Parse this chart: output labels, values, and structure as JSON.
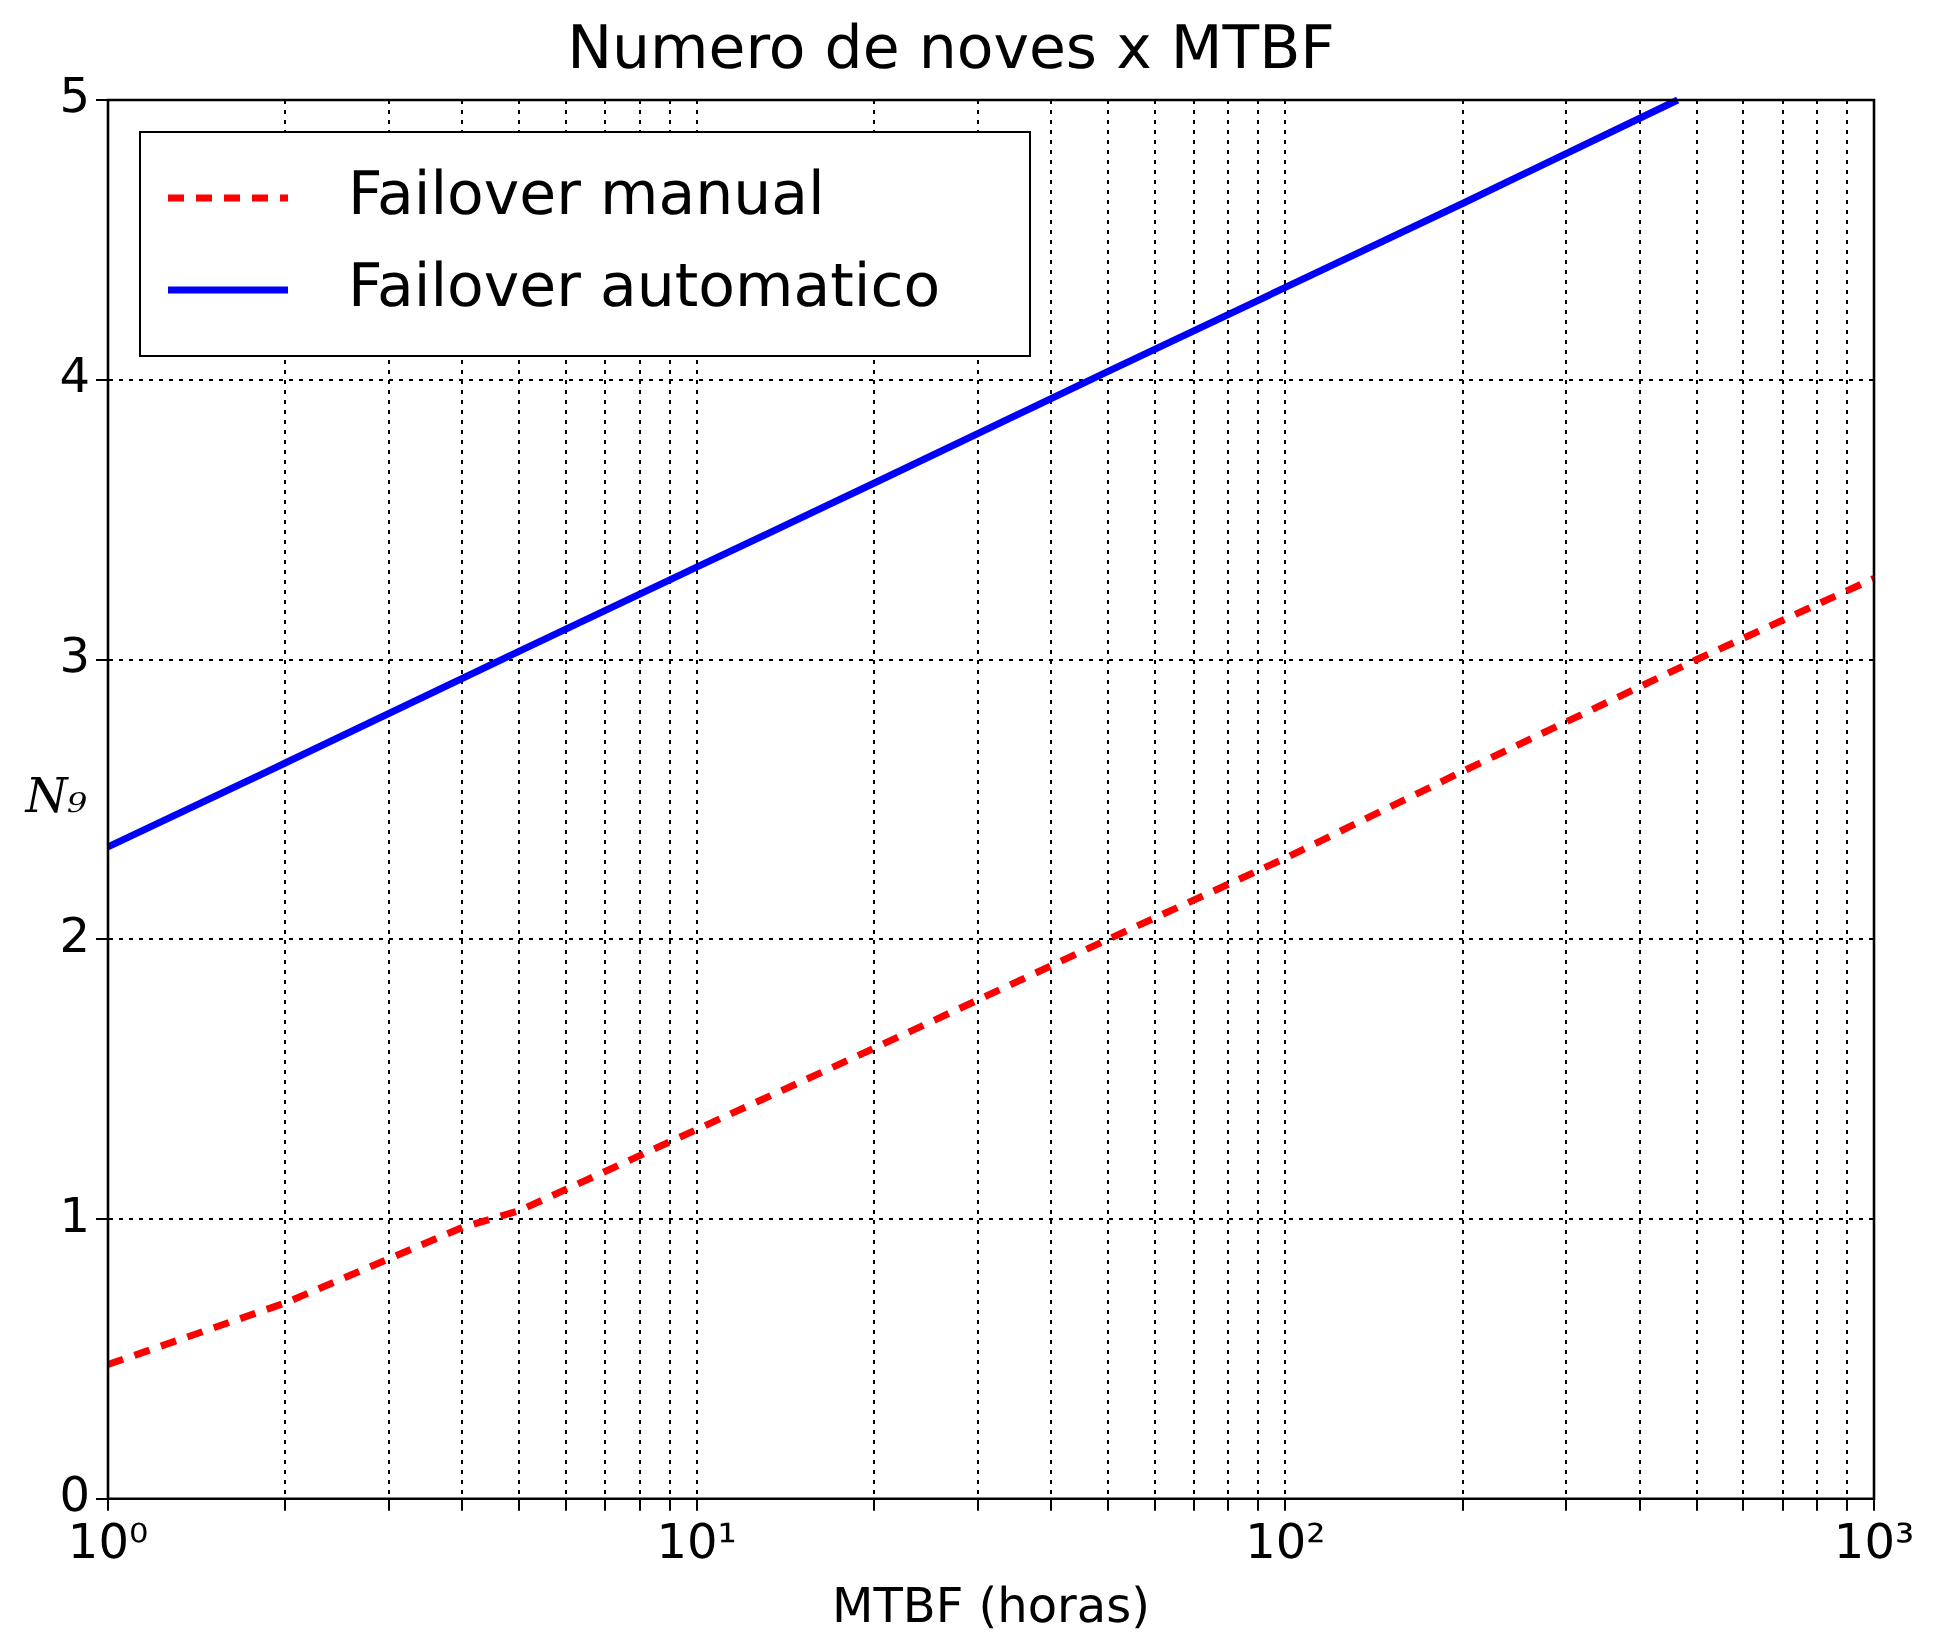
{
  "chart_data": {
    "type": "line",
    "title": "Numero de noves x MTBF",
    "xlabel": "MTBF (horas)",
    "ylabel": "N₉",
    "log": "x",
    "xlim": [
      1,
      1000
    ],
    "xticks": [
      {
        "value": 1,
        "label": "10⁰"
      },
      {
        "value": 2,
        "label": null
      },
      {
        "value": 3,
        "label": null
      },
      {
        "value": 4,
        "label": null
      },
      {
        "value": 5,
        "label": null
      },
      {
        "value": 6,
        "label": null
      },
      {
        "value": 7,
        "label": null
      },
      {
        "value": 8,
        "label": null
      },
      {
        "value": 9,
        "label": null
      },
      {
        "value": 10,
        "label": "10¹"
      },
      {
        "value": 20,
        "label": null
      },
      {
        "value": 30,
        "label": null
      },
      {
        "value": 40,
        "label": null
      },
      {
        "value": 50,
        "label": null
      },
      {
        "value": 60,
        "label": null
      },
      {
        "value": 70,
        "label": null
      },
      {
        "value": 80,
        "label": null
      },
      {
        "value": 90,
        "label": null
      },
      {
        "value": 100,
        "label": "10²"
      },
      {
        "value": 200,
        "label": null
      },
      {
        "value": 300,
        "label": null
      },
      {
        "value": 400,
        "label": null
      },
      {
        "value": 500,
        "label": null
      },
      {
        "value": 600,
        "label": null
      },
      {
        "value": 700,
        "label": null
      },
      {
        "value": 800,
        "label": null
      },
      {
        "value": 900,
        "label": null
      },
      {
        "value": 1000,
        "label": "10³"
      }
    ],
    "ylim": [
      0,
      5
    ],
    "yticks": [
      0,
      1,
      2,
      3,
      4,
      5
    ],
    "grid": true,
    "legend": "top left",
    "series": [
      {
        "name": "Failover manual",
        "color": "#ff0000",
        "line_style": "dashed",
        "x": [
          1,
          2,
          4,
          5,
          10,
          20,
          50,
          100,
          200,
          500,
          1000
        ],
        "values": [
          0.48,
          0.7,
          0.97,
          1.03,
          1.32,
          1.61,
          2.0,
          2.29,
          2.6,
          3.0,
          3.29
        ]
      },
      {
        "name": "Failover automatico",
        "color": "#0000ff",
        "line_style": "solid",
        "x": [
          1,
          2,
          5,
          10,
          20,
          50,
          100,
          200,
          464
        ],
        "values": [
          2.33,
          2.63,
          3.03,
          3.33,
          3.63,
          4.03,
          4.33,
          4.63,
          5.0
        ]
      }
    ]
  }
}
